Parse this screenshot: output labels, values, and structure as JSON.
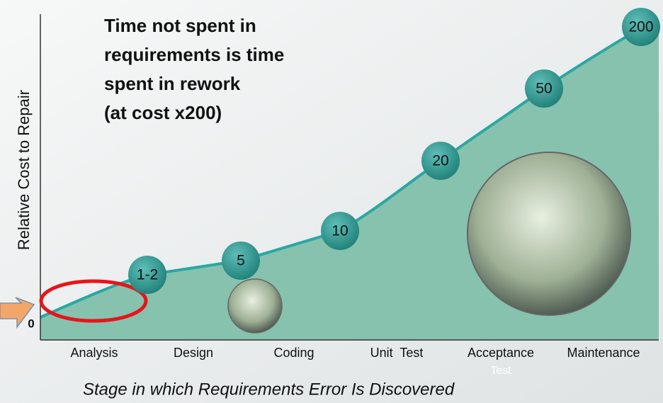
{
  "callout": {
    "lines": [
      "Time not spent in",
      "requirements is time",
      "spent in rework",
      "(at cost x200)"
    ]
  },
  "y_axis_label": "Relative Cost to Repair",
  "origin_label": "0",
  "points": [
    {
      "label": "1-2"
    },
    {
      "label": "5"
    },
    {
      "label": "10"
    },
    {
      "label": "20"
    },
    {
      "label": "50"
    },
    {
      "label": "200"
    }
  ],
  "stages": [
    {
      "label": "Analysis"
    },
    {
      "label": "Design"
    },
    {
      "label": "Coding"
    },
    {
      "label": "Unit  Test"
    },
    {
      "label": "Acceptance"
    },
    {
      "label": "Maintenance"
    }
  ],
  "stage_note": "Test",
  "x_axis_label": "Stage in which Requirements Error Is Discovered"
}
